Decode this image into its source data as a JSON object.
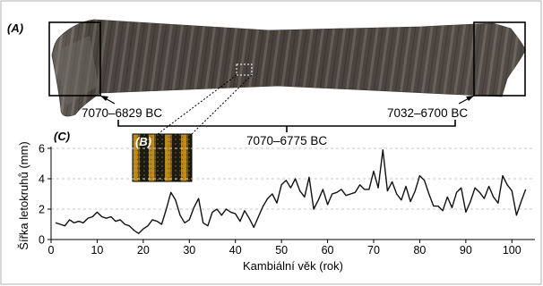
{
  "panels": {
    "a": "(A)",
    "b": "(B)",
    "c": "(C)"
  },
  "annotations": {
    "left_date": "7070–6829 BC",
    "right_date": "7032–6700 BC",
    "span_date": "7070–6775 BC"
  },
  "colors": {
    "line": "#111111",
    "grid": "#c8c8c8",
    "wood_dark": "#3f3a36",
    "wood_light": "#6e6760",
    "zoom_dark": "#1b1a12",
    "zoom_light": "#c0901c"
  },
  "chart_data": {
    "type": "line",
    "title": "",
    "xlabel": "Kambiální věk (rok)",
    "ylabel": "Šířka letokruhů (mm)",
    "xlim": [
      0,
      105
    ],
    "ylim": [
      0,
      6
    ],
    "xticks": [
      0,
      10,
      20,
      30,
      40,
      50,
      60,
      70,
      80,
      90,
      100
    ],
    "yticks": [
      0,
      2,
      4,
      6
    ],
    "grid": "horizontal dashed",
    "x": [
      1,
      2,
      3,
      4,
      5,
      6,
      7,
      8,
      9,
      10,
      11,
      12,
      13,
      14,
      15,
      16,
      17,
      18,
      19,
      20,
      21,
      22,
      23,
      24,
      25,
      26,
      27,
      28,
      29,
      30,
      31,
      32,
      33,
      34,
      35,
      36,
      37,
      38,
      39,
      40,
      41,
      42,
      43,
      44,
      45,
      46,
      47,
      48,
      49,
      50,
      51,
      52,
      53,
      54,
      55,
      56,
      57,
      58,
      59,
      60,
      61,
      62,
      63,
      64,
      65,
      66,
      67,
      68,
      69,
      70,
      71,
      72,
      73,
      74,
      75,
      76,
      77,
      78,
      79,
      80,
      81,
      82,
      83,
      84,
      85,
      86,
      87,
      88,
      89,
      90,
      91,
      92,
      93,
      94,
      95,
      96,
      97,
      98,
      99,
      100,
      101,
      102,
      103
    ],
    "values": [
      1.1,
      1.0,
      0.9,
      1.3,
      1.1,
      1.2,
      1.1,
      1.4,
      1.5,
      1.8,
      1.5,
      1.4,
      1.5,
      1.2,
      1.3,
      1.0,
      0.9,
      0.6,
      0.4,
      0.7,
      0.9,
      1.3,
      1.2,
      1.0,
      2.0,
      3.1,
      2.6,
      1.6,
      1.1,
      1.3,
      2.1,
      2.7,
      1.1,
      0.9,
      1.8,
      2.0,
      1.6,
      2.0,
      1.8,
      1.7,
      1.2,
      1.9,
      1.4,
      0.8,
      1.5,
      2.2,
      2.7,
      3.0,
      2.4,
      3.6,
      3.9,
      3.4,
      4.0,
      3.2,
      2.8,
      4.1,
      2.0,
      2.6,
      3.3,
      2.3,
      3.0,
      3.1,
      3.3,
      2.9,
      3.0,
      3.1,
      3.6,
      3.3,
      3.3,
      4.5,
      3.4,
      5.9,
      3.2,
      3.8,
      3.0,
      2.6,
      3.5,
      2.5,
      3.2,
      4.2,
      3.9,
      3.0,
      2.2,
      2.2,
      1.9,
      2.8,
      2.1,
      3.1,
      3.4,
      1.8,
      2.5,
      3.4,
      3.1,
      2.7,
      3.5,
      2.8,
      2.4,
      4.2,
      3.6,
      3.2,
      1.6,
      2.5,
      3.3
    ]
  }
}
